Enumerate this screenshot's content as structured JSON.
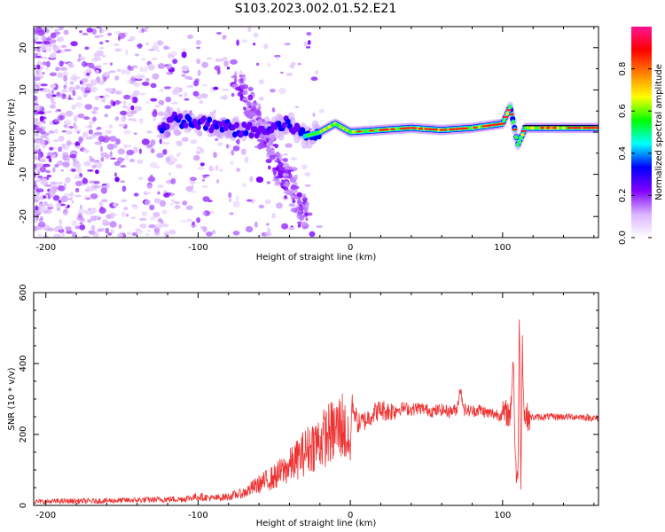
{
  "title": "S103.2023.002.01.52.E21",
  "chart_data": [
    {
      "type": "heatmap",
      "xlabel": "Height of straight line (km)",
      "ylabel": "Frequency (Hz)",
      "xlim": [
        -208,
        163
      ],
      "ylim": [
        -25,
        25
      ],
      "x_ticks": [
        -200,
        -100,
        0,
        100
      ],
      "y_ticks": [
        20,
        10,
        0,
        -10,
        -20
      ],
      "colorbar": {
        "label": "Normalized spectral amplitude",
        "range": [
          0,
          1
        ],
        "ticks": [
          "0.0",
          "0.2",
          "0.4",
          "0.6",
          "0.8"
        ],
        "colors": [
          "#ffffff",
          "#d9b3ff",
          "#8000ff",
          "#0000ff",
          "#00ffff",
          "#00ff00",
          "#ffff00",
          "#ff8000",
          "#ff0000",
          "#ff1493"
        ]
      },
      "ridge": [
        {
          "x": -120,
          "y": 3
        },
        {
          "x": -100,
          "y": 2
        },
        {
          "x": -80,
          "y": 1
        },
        {
          "x": -60,
          "y": 0
        },
        {
          "x": -40,
          "y": 2
        },
        {
          "x": -30,
          "y": -1
        },
        {
          "x": -20,
          "y": 0
        },
        {
          "x": -10,
          "y": 2
        },
        {
          "x": 0,
          "y": 0
        },
        {
          "x": 20,
          "y": 0.5
        },
        {
          "x": 40,
          "y": 1
        },
        {
          "x": 60,
          "y": 0.5
        },
        {
          "x": 80,
          "y": 1
        },
        {
          "x": 100,
          "y": 2
        },
        {
          "x": 105,
          "y": 6
        },
        {
          "x": 110,
          "y": -3
        },
        {
          "x": 115,
          "y": 1
        },
        {
          "x": 140,
          "y": 1
        },
        {
          "x": 163,
          "y": 1
        }
      ]
    },
    {
      "type": "line",
      "xlabel": "Height of straight line (km)",
      "ylabel": "SNR (10 * v/v)",
      "xlim": [
        -208,
        163
      ],
      "ylim": [
        0,
        600
      ],
      "x_ticks": [
        -200,
        -100,
        0,
        100
      ],
      "y_ticks": [
        0,
        200,
        400,
        600
      ],
      "color": "#ee3333",
      "series": [
        {
          "x": [
            -208,
            -190,
            -170,
            -150,
            -130,
            -110,
            -100,
            -90,
            -80,
            -70,
            -60,
            -50,
            -40,
            -35,
            -30,
            -25,
            -20,
            -15,
            -10,
            -5,
            0,
            1,
            5,
            10,
            15,
            20,
            25,
            30,
            35,
            40,
            45,
            50,
            55,
            60,
            65,
            70,
            72,
            75,
            80,
            85,
            90,
            95,
            100,
            103,
            105,
            107,
            108,
            109,
            110,
            111,
            112,
            113,
            114,
            115,
            117,
            120,
            130,
            140,
            150,
            163
          ],
          "y": [
            10,
            12,
            12,
            14,
            16,
            18,
            25,
            20,
            25,
            35,
            60,
            80,
            110,
            130,
            150,
            170,
            180,
            200,
            210,
            230,
            150,
            290,
            230,
            240,
            260,
            270,
            265,
            270,
            275,
            270,
            275,
            270,
            265,
            270,
            265,
            270,
            330,
            270,
            265,
            270,
            260,
            258,
            255,
            262,
            250,
            420,
            200,
            80,
            60,
            560,
            80,
            470,
            260,
            250,
            250,
            248,
            250,
            250,
            250,
            245
          ]
        }
      ]
    }
  ]
}
